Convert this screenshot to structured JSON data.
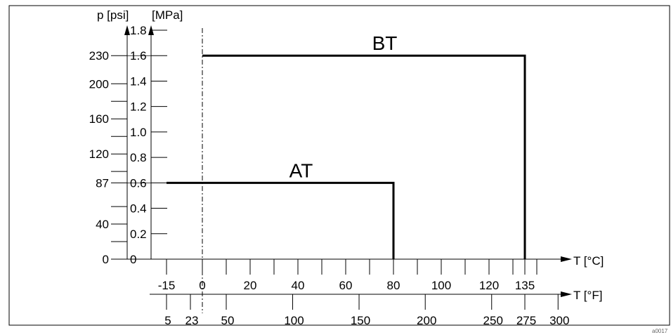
{
  "chart_data": {
    "type": "line",
    "y_psi_label": "p [psi]",
    "y_mpa_label": "[MPa]",
    "x_c_label": "T [°C]",
    "x_f_label": "T [°F]",
    "y_mpa_ticks": [
      "0",
      "0.2",
      "0.4",
      "0.6",
      "0.8",
      "1.0",
      "1.2",
      "1.4",
      "1.6",
      "1.8"
    ],
    "y_psi_labeled": [
      {
        "label": "0",
        "mpa": 0
      },
      {
        "label": "40",
        "mpa": 0.276
      },
      {
        "label": "87",
        "mpa": 0.6
      },
      {
        "label": "120",
        "mpa": 0.827
      },
      {
        "label": "160",
        "mpa": 1.103
      },
      {
        "label": "200",
        "mpa": 1.379
      },
      {
        "label": "230",
        "mpa": 1.6
      }
    ],
    "y_psi_unlabeled_ticks": [
      20,
      60,
      100,
      140,
      180
    ],
    "x_c_labeled": [
      "-15",
      "0",
      "20",
      "40",
      "60",
      "80",
      "100",
      "120",
      "135"
    ],
    "x_c_minor_ticks": [
      10,
      30,
      50,
      70,
      90,
      110,
      130
    ],
    "x_f_labeled": [
      {
        "label": "5",
        "c": -15
      },
      {
        "label": "23",
        "c": -5
      },
      {
        "label": "50",
        "c": 10
      },
      {
        "label": "100",
        "c": 37.8
      },
      {
        "label": "150",
        "c": 65.6
      },
      {
        "label": "200",
        "c": 93.3
      },
      {
        "label": "250",
        "c": 121.1
      },
      {
        "label": "275",
        "c": 135
      },
      {
        "label": "300",
        "c": 148.9
      }
    ],
    "reference_line_c": 0,
    "series": [
      {
        "name": "BT",
        "points": [
          [
            0,
            1.6
          ],
          [
            135,
            1.6
          ],
          [
            135,
            0
          ]
        ]
      },
      {
        "name": "AT",
        "points": [
          [
            -15,
            0.6
          ],
          [
            80,
            0.6
          ],
          [
            80,
            0
          ]
        ]
      }
    ],
    "footnote": "a0017"
  }
}
